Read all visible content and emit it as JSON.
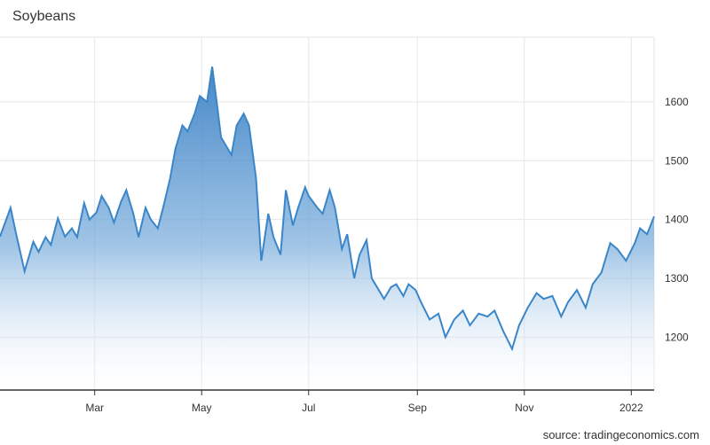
{
  "chart_data": {
    "type": "area",
    "title": "Soybeans",
    "xlabel": "",
    "ylabel": "",
    "x_tick_labels": [
      "Mar",
      "May",
      "Jul",
      "Sep",
      "Nov",
      "2022"
    ],
    "y_tick_labels": [
      "1200",
      "1300",
      "1400",
      "1500",
      "1600"
    ],
    "y_ticks": [
      1200,
      1300,
      1400,
      1500,
      1600
    ],
    "ylim": [
      1110,
      1710
    ],
    "xlim": [
      "2021-01-06",
      "2022-01-14"
    ],
    "grid": true,
    "legend": "none",
    "colors": {
      "line": "#3a86c8",
      "fill_top": "#5b9bd5",
      "fill_bottom": "#ffffff",
      "grid": "#e6e6e6",
      "axis": "#333333"
    },
    "series": [
      {
        "x": [
          "2021-01-06",
          "2021-01-12",
          "2021-01-15",
          "2021-01-20",
          "2021-01-25",
          "2021-01-28",
          "2021-02-01",
          "2021-02-04",
          "2021-02-08",
          "2021-02-12",
          "2021-02-16",
          "2021-02-19",
          "2021-02-23",
          "2021-02-26",
          "2021-03-02",
          "2021-03-05",
          "2021-03-09",
          "2021-03-12",
          "2021-03-16",
          "2021-03-19",
          "2021-03-23",
          "2021-03-26",
          "2021-03-30",
          "2021-04-02",
          "2021-04-06",
          "2021-04-09",
          "2021-04-13",
          "2021-04-16",
          "2021-04-20",
          "2021-04-23",
          "2021-04-27",
          "2021-04-30",
          "2021-05-04",
          "2021-05-07",
          "2021-05-10",
          "2021-05-12",
          "2021-05-14",
          "2021-05-18",
          "2021-05-21",
          "2021-05-25",
          "2021-05-28",
          "2021-06-01",
          "2021-06-04",
          "2021-06-08",
          "2021-06-11",
          "2021-06-15",
          "2021-06-18",
          "2021-06-22",
          "2021-06-25",
          "2021-06-29",
          "2021-07-01",
          "2021-07-06",
          "2021-07-09",
          "2021-07-13",
          "2021-07-16",
          "2021-07-20",
          "2021-07-23",
          "2021-07-27",
          "2021-07-30",
          "2021-08-03",
          "2021-08-06",
          "2021-08-10",
          "2021-08-13",
          "2021-08-17",
          "2021-08-20",
          "2021-08-24",
          "2021-08-27",
          "2021-08-31",
          "2021-09-03",
          "2021-09-08",
          "2021-09-13",
          "2021-09-17",
          "2021-09-22",
          "2021-09-27",
          "2021-10-01",
          "2021-10-06",
          "2021-10-11",
          "2021-10-15",
          "2021-10-20",
          "2021-10-25",
          "2021-10-29",
          "2021-11-03",
          "2021-11-08",
          "2021-11-12",
          "2021-11-17",
          "2021-11-22",
          "2021-11-26",
          "2021-12-01",
          "2021-12-06",
          "2021-12-10",
          "2021-12-15",
          "2021-12-20",
          "2021-12-24",
          "2021-12-29",
          "2022-01-03",
          "2022-01-06",
          "2022-01-10",
          "2022-01-14"
        ],
        "values": [
          1371,
          1420,
          1378,
          1312,
          1362,
          1345,
          1370,
          1357,
          1402,
          1371,
          1385,
          1370,
          1428,
          1400,
          1412,
          1440,
          1420,
          1395,
          1430,
          1450,
          1410,
          1370,
          1420,
          1400,
          1385,
          1420,
          1470,
          1520,
          1560,
          1550,
          1580,
          1610,
          1600,
          1660,
          1590,
          1540,
          1530,
          1510,
          1560,
          1580,
          1560,
          1470,
          1330,
          1410,
          1370,
          1340,
          1450,
          1390,
          1420,
          1455,
          1440,
          1420,
          1410,
          1450,
          1420,
          1350,
          1375,
          1300,
          1340,
          1365,
          1300,
          1280,
          1265,
          1285,
          1290,
          1270,
          1290,
          1280,
          1260,
          1230,
          1240,
          1200,
          1230,
          1245,
          1220,
          1240,
          1235,
          1245,
          1210,
          1180,
          1220,
          1250,
          1275,
          1265,
          1270,
          1235,
          1260,
          1280,
          1250,
          1290,
          1310,
          1360,
          1350,
          1330,
          1360,
          1385,
          1375,
          1405
        ]
      }
    ]
  },
  "page": {
    "source": "source: tradingeconomics.com"
  }
}
